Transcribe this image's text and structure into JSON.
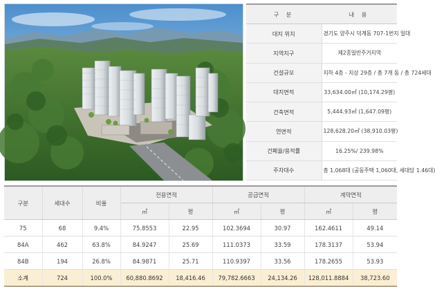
{
  "overview": {
    "header": {
      "label": "구 분",
      "content": "내 용"
    },
    "rows": [
      {
        "label": "대지 위치",
        "value": "경기도 양주시 덕계동 707-1번지 일대"
      },
      {
        "label": "지역지구",
        "value": "제2종일반주거지역"
      },
      {
        "label": "건설규모",
        "value": "지하 4층 - 지상 29층 / 총 7개 동 / 총 724세대"
      },
      {
        "label": "대지면적",
        "value": "33,634.00㎡ (10,174.29평)"
      },
      {
        "label": "건축면적",
        "value": "5,444.93㎡ (1,647.09평)"
      },
      {
        "label": "연면적",
        "value": "128,628.20㎡ (38,910.03평)"
      },
      {
        "label": "건폐율/용적률",
        "value": "16.25%/ 239.98%"
      },
      {
        "label": "주차대수",
        "value": "총 1,068대 (공동주택 1,060대, 세대당 1.46대)"
      }
    ]
  },
  "units": {
    "headers": {
      "type": "구분",
      "households": "세대수",
      "ratio": "비율",
      "exclusive": "전용면적",
      "supply": "공급면적",
      "contract": "계약면적",
      "sqm": "㎡",
      "pyeong": "평"
    },
    "rows": [
      {
        "type": "75",
        "households": "68",
        "ratio": "9.4%",
        "ex_m": "75.8553",
        "ex_p": "22.95",
        "su_m": "102.3694",
        "su_p": "30.97",
        "co_m": "162.4611",
        "co_p": "49.14"
      },
      {
        "type": "84A",
        "households": "462",
        "ratio": "63.8%",
        "ex_m": "84.9247",
        "ex_p": "25.69",
        "su_m": "111.0373",
        "su_p": "33.59",
        "co_m": "178.3137",
        "co_p": "53.94"
      },
      {
        "type": "84B",
        "households": "194",
        "ratio": "26.8%",
        "ex_m": "84.9871",
        "ex_p": "25.71",
        "su_m": "110.9397",
        "su_p": "33.56",
        "co_m": "178.2655",
        "co_p": "53.93"
      }
    ],
    "total": {
      "type": "소계",
      "households": "724",
      "ratio": "100.0%",
      "ex_m": "60,880.8692",
      "ex_p": "18,416.46",
      "su_m": "79,782.6663",
      "su_p": "24,134.26",
      "co_m": "128,011.8884",
      "co_p": "38,723.60"
    }
  },
  "colors": {
    "total_row": "#fbefd3",
    "header_bg": "#eeeeee",
    "forest": "#3d6b2e",
    "sky": "#6aa8d8"
  }
}
